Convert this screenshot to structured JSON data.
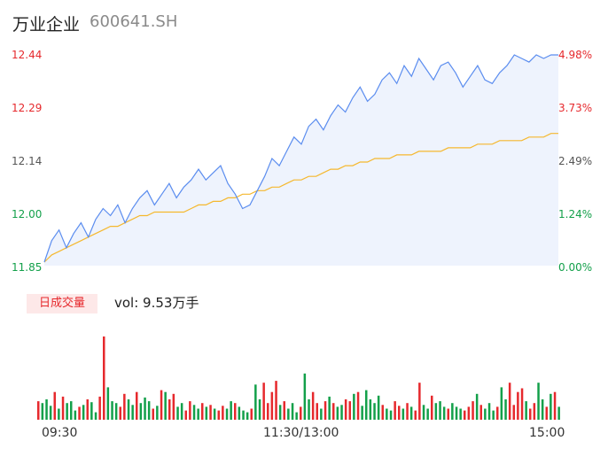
{
  "header": {
    "name": "万业企业",
    "code": "600641.SH"
  },
  "y_axis_left": [
    "12.44",
    "12.29",
    "12.14",
    "12.00",
    "11.85"
  ],
  "y_axis_right": [
    "4.98%",
    "3.73%",
    "2.49%",
    "1.24%",
    "0.00%"
  ],
  "volume": {
    "tag": "日成交量",
    "label": "vol: 9.53万手"
  },
  "time_labels": [
    "09:30",
    "11:30/13:00",
    "15:00"
  ],
  "colors": {
    "price": "#5b8def",
    "avg": "#f5b82e",
    "up": "#e6292d",
    "down": "#13a04a",
    "area": "#eef3fd"
  },
  "chart_data": {
    "type": "line",
    "ylim": [
      11.85,
      12.44
    ],
    "series": [
      {
        "values": [
          11.86,
          11.92,
          11.95,
          11.9,
          11.94,
          11.97,
          11.93,
          11.98,
          12.01,
          11.99,
          12.02,
          11.97,
          12.01,
          12.04,
          12.06,
          12.02,
          12.05,
          12.08,
          12.04,
          12.07,
          12.09,
          12.12,
          12.09,
          12.11,
          12.13,
          12.08,
          12.05,
          12.01,
          12.02,
          12.06,
          12.1,
          12.15,
          12.13,
          12.17,
          12.21,
          12.19,
          12.24,
          12.26,
          12.23,
          12.27,
          12.3,
          12.28,
          12.32,
          12.35,
          12.31,
          12.33,
          12.37,
          12.39,
          12.36,
          12.41,
          12.38,
          12.43,
          12.4,
          12.37,
          12.41,
          12.42,
          12.39,
          12.35,
          12.38,
          12.41,
          12.37,
          12.36,
          12.39,
          12.41,
          12.44,
          12.43,
          12.42,
          12.44,
          12.43,
          12.44,
          12.44
        ]
      },
      {
        "values": [
          11.86,
          11.88,
          11.89,
          11.9,
          11.91,
          11.92,
          11.93,
          11.94,
          11.95,
          11.96,
          11.96,
          11.97,
          11.98,
          11.99,
          11.99,
          12.0,
          12.0,
          12.0,
          12.0,
          12.0,
          12.01,
          12.02,
          12.02,
          12.03,
          12.03,
          12.04,
          12.04,
          12.05,
          12.05,
          12.06,
          12.06,
          12.07,
          12.07,
          12.08,
          12.09,
          12.09,
          12.1,
          12.1,
          12.11,
          12.12,
          12.12,
          12.13,
          12.13,
          12.14,
          12.14,
          12.15,
          12.15,
          12.15,
          12.16,
          12.16,
          12.16,
          12.17,
          12.17,
          12.17,
          12.17,
          12.18,
          12.18,
          12.18,
          12.18,
          12.19,
          12.19,
          12.19,
          12.2,
          12.2,
          12.2,
          12.2,
          12.21,
          12.21,
          12.21,
          12.22,
          12.22
        ]
      }
    ],
    "volume_values": [
      20,
      18,
      22,
      15,
      30,
      12,
      25,
      18,
      20,
      10,
      14,
      16,
      22,
      19,
      8,
      25,
      90,
      35,
      20,
      18,
      14,
      28,
      22,
      16,
      30,
      18,
      24,
      20,
      12,
      15,
      32,
      30,
      22,
      28,
      14,
      18,
      10,
      20,
      16,
      12,
      18,
      14,
      16,
      12,
      10,
      15,
      12,
      20,
      18,
      14,
      10,
      8,
      12,
      38,
      22,
      40,
      18,
      30,
      42,
      16,
      20,
      12,
      18,
      8,
      14,
      50,
      22,
      30,
      18,
      12,
      20,
      25,
      18,
      14,
      16,
      22,
      20,
      28,
      30,
      15,
      32,
      22,
      18,
      26,
      16,
      12,
      10,
      20,
      15,
      12,
      18,
      14,
      10,
      40,
      16,
      12,
      26,
      18,
      20,
      14,
      12,
      18,
      14,
      12,
      10,
      14,
      20,
      28,
      16,
      12,
      18,
      10,
      14,
      35,
      22,
      40,
      16,
      30,
      34,
      20,
      12,
      18,
      40,
      22,
      14,
      28,
      30,
      14
    ]
  }
}
